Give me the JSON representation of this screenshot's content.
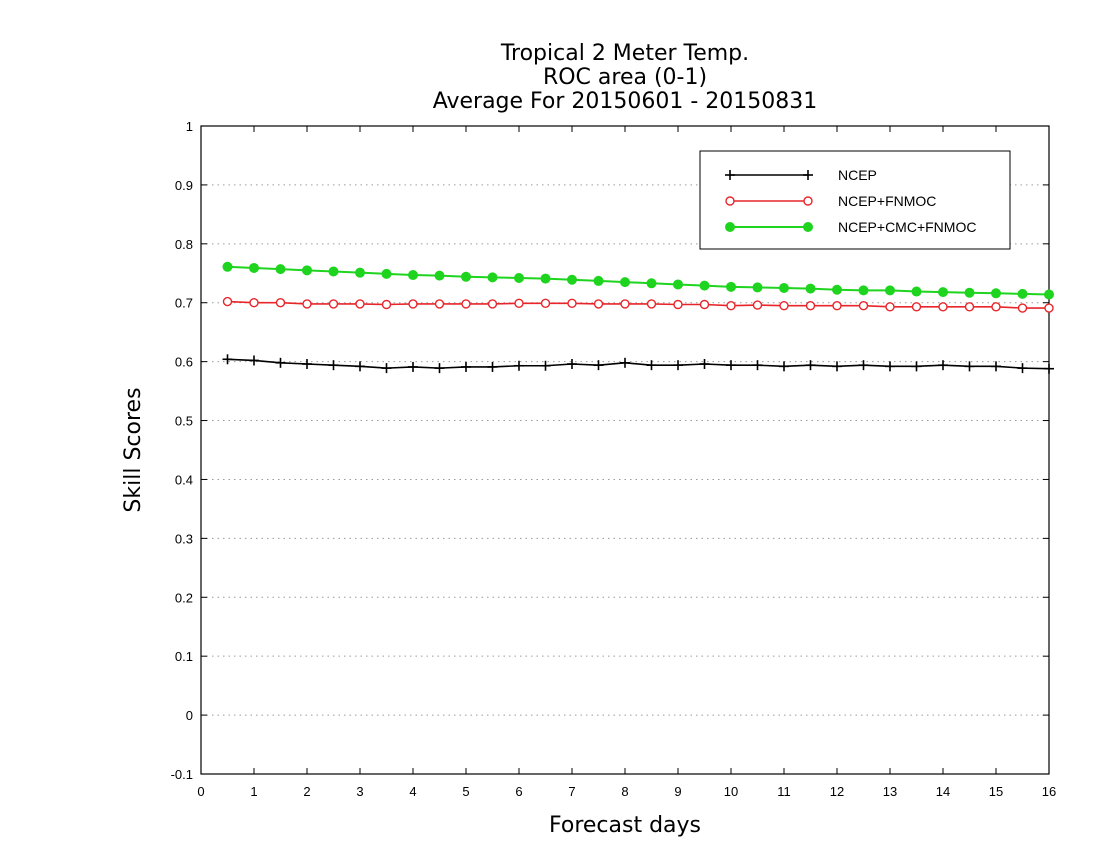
{
  "chart_data": {
    "type": "line",
    "title_lines": [
      "Tropical 2 Meter Temp.",
      "ROC area (0-1)",
      "Average For 20150601 - 20150831"
    ],
    "xlabel": "Forecast days",
    "ylabel": "Skill Scores",
    "xlim": [
      0,
      16
    ],
    "ylim": [
      -0.1,
      1
    ],
    "xticks": [
      0,
      1,
      2,
      3,
      4,
      5,
      6,
      7,
      8,
      9,
      10,
      11,
      12,
      13,
      14,
      15,
      16
    ],
    "yticks": [
      "-0.1",
      "0",
      "0.1",
      "0.2",
      "0.3",
      "0.4",
      "0.5",
      "0.6",
      "0.7",
      "0.8",
      "0.9",
      "1"
    ],
    "grid": "horizontal dotted",
    "legend_position": "top-right",
    "x": [
      0.5,
      1.0,
      1.5,
      2.0,
      2.5,
      3.0,
      3.5,
      4.0,
      4.5,
      5.0,
      5.5,
      6.0,
      6.5,
      7.0,
      7.5,
      8.0,
      8.5,
      9.0,
      9.5,
      10.0,
      10.5,
      11.0,
      11.5,
      12.0,
      12.5,
      13.0,
      13.5,
      14.0,
      14.5,
      15.0,
      15.5,
      16.0
    ],
    "series": [
      {
        "name": "NCEP",
        "color": "#000000",
        "marker": "plus",
        "values": [
          0.604,
          0.602,
          0.598,
          0.596,
          0.594,
          0.592,
          0.589,
          0.591,
          0.589,
          0.591,
          0.591,
          0.593,
          0.593,
          0.596,
          0.594,
          0.598,
          0.594,
          0.594,
          0.596,
          0.594,
          0.594,
          0.592,
          0.594,
          0.592,
          0.594,
          0.592,
          0.592,
          0.594,
          0.592,
          0.592,
          0.589,
          0.588
        ]
      },
      {
        "name": "NCEP+FNMOC",
        "color": "#e8252a",
        "marker": "open-circle",
        "values": [
          0.702,
          0.7,
          0.7,
          0.698,
          0.698,
          0.698,
          0.697,
          0.698,
          0.698,
          0.698,
          0.698,
          0.699,
          0.699,
          0.699,
          0.698,
          0.698,
          0.698,
          0.697,
          0.697,
          0.695,
          0.696,
          0.695,
          0.695,
          0.695,
          0.695,
          0.693,
          0.693,
          0.693,
          0.693,
          0.693,
          0.691,
          0.691
        ]
      },
      {
        "name": "NCEP+CMC+FNMOC",
        "color": "#1ed41e",
        "marker": "filled-circle",
        "values": [
          0.761,
          0.759,
          0.757,
          0.755,
          0.753,
          0.751,
          0.749,
          0.747,
          0.746,
          0.744,
          0.743,
          0.742,
          0.741,
          0.739,
          0.737,
          0.735,
          0.733,
          0.731,
          0.729,
          0.727,
          0.726,
          0.725,
          0.724,
          0.722,
          0.721,
          0.721,
          0.719,
          0.718,
          0.717,
          0.716,
          0.715,
          0.714
        ]
      }
    ]
  }
}
